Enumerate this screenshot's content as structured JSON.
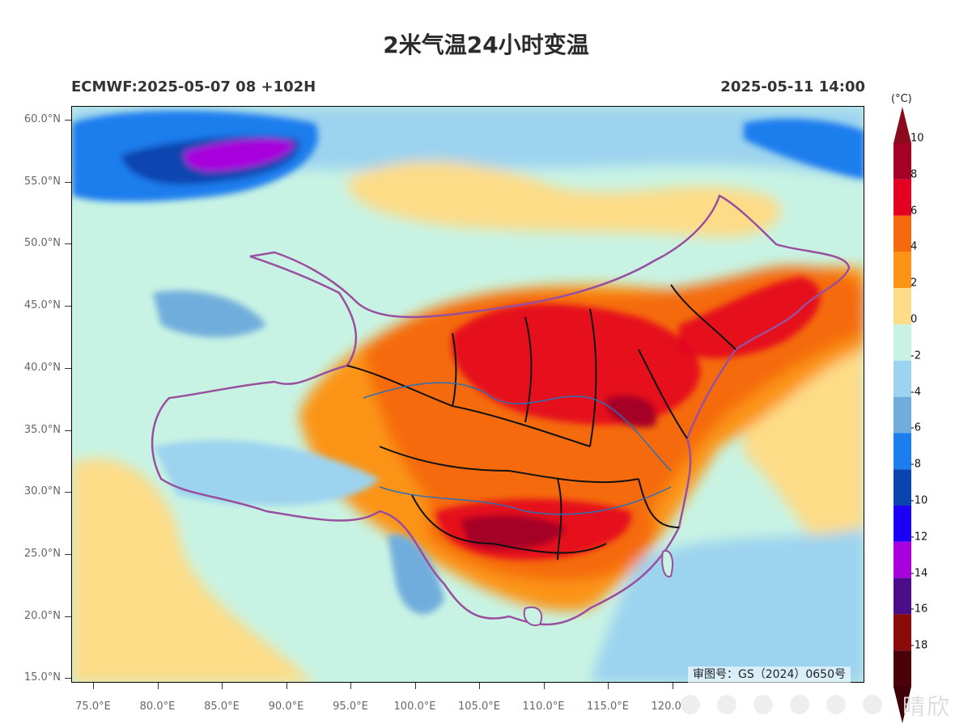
{
  "title": "2米气温24小时变温",
  "model_run": "ECMWF:2025-05-07 08 +102H",
  "valid_time": "2025-05-11 14:00",
  "review_number": "审图号：GS（2024）0650号",
  "watermark_text": "晴欣",
  "colorbar": {
    "unit": "(°C)",
    "levels": [
      "10",
      "8",
      "6",
      "4",
      "2",
      "0",
      "-2",
      "-4",
      "-6",
      "-8",
      "-10",
      "-12",
      "-14",
      "-16",
      "-18"
    ],
    "colors": [
      "#a50026",
      "#e30020",
      "#f56a0e",
      "#fb9416",
      "#fddc87",
      "#c8f3e4",
      "#9cd3ef",
      "#71addc",
      "#1c7ded",
      "#0a44b1",
      "#1b00f5",
      "#a700dd",
      "#4b0d8a",
      "#8b0a0a",
      "#4a0208"
    ],
    "top_arrow_color": "#8b0a1e",
    "bottom_arrow_color": "#3d0008"
  },
  "lat_ticks": [
    "60.0°N",
    "55.0°N",
    "50.0°N",
    "45.0°N",
    "40.0°N",
    "35.0°N",
    "30.0°N",
    "25.0°N",
    "20.0°N",
    "15.0°N"
  ],
  "lon_ticks": [
    "75.0°E",
    "80.0°E",
    "85.0°E",
    "90.0°E",
    "95.0°E",
    "100.0°E",
    "105.0°E",
    "110.0°E",
    "115.0°E",
    "120.0°E"
  ],
  "colors": {
    "border": "#9a4f9e",
    "province": "#111111",
    "river": "#2a6fb8"
  }
}
